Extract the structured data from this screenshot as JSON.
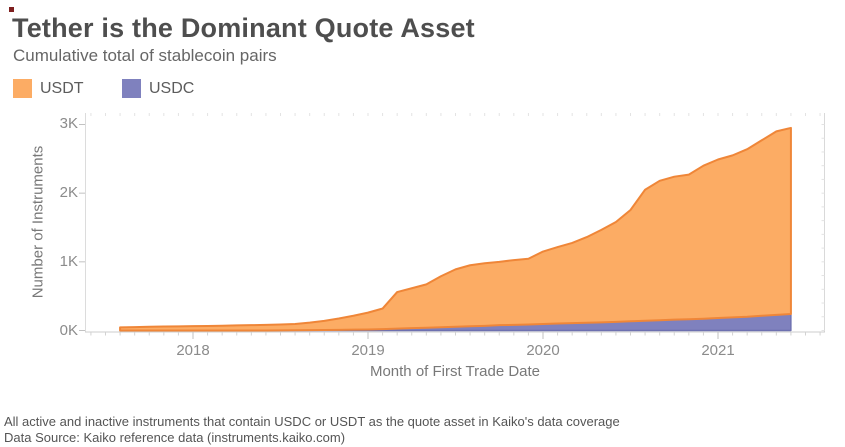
{
  "page": {
    "title": "Tether is the Dominant Quote Asset",
    "subtitle": "Cumulative total of stablecoin pairs"
  },
  "legend": {
    "items": [
      {
        "label": "USDT",
        "color": "#FCAC64"
      },
      {
        "label": "USDC",
        "color": "#7F81BE"
      }
    ]
  },
  "footer": {
    "line1": "All active and inactive instruments that contain USDC or USDT as the quote asset in Kaiko's data coverage",
    "line2": "Data Source: Kaiko reference data (instruments.kaiko.com)"
  },
  "chart_data": {
    "type": "area",
    "stacked": true,
    "title": "Tether is the Dominant Quote Asset",
    "subtitle": "Cumulative total of stablecoin pairs",
    "xlabel": "Month of First Trade Date",
    "ylabel": "Number of Instruments",
    "x_tick_labels": [
      "2018",
      "2019",
      "2020",
      "2021"
    ],
    "y_tick_labels": [
      "0K",
      "1K",
      "2K",
      "3K"
    ],
    "y_tick_values": [
      0,
      1000,
      2000,
      3000
    ],
    "ylim": [
      0,
      3150
    ],
    "legend_position": "top-left",
    "grid": false,
    "months": [
      "2017-08",
      "2017-09",
      "2017-10",
      "2017-11",
      "2017-12",
      "2018-01",
      "2018-02",
      "2018-03",
      "2018-04",
      "2018-05",
      "2018-06",
      "2018-07",
      "2018-08",
      "2018-09",
      "2018-10",
      "2018-11",
      "2018-12",
      "2019-01",
      "2019-02",
      "2019-03",
      "2019-04",
      "2019-05",
      "2019-06",
      "2019-07",
      "2019-08",
      "2019-09",
      "2019-10",
      "2019-11",
      "2019-12",
      "2020-01",
      "2020-02",
      "2020-03",
      "2020-04",
      "2020-05",
      "2020-06",
      "2020-07",
      "2020-08",
      "2020-09",
      "2020-10",
      "2020-11",
      "2020-12",
      "2021-01",
      "2021-02",
      "2021-03",
      "2021-04",
      "2021-05",
      "2021-06"
    ],
    "stack_order": [
      "USDC",
      "USDT"
    ],
    "series": [
      {
        "name": "USDC",
        "color": "#7F81BE",
        "stroke": "#6E71B0",
        "values": [
          0,
          0,
          0,
          0,
          0,
          0,
          0,
          0,
          0,
          0,
          0,
          2,
          3,
          5,
          8,
          10,
          12,
          15,
          20,
          28,
          35,
          40,
          48,
          55,
          62,
          68,
          78,
          82,
          88,
          95,
          102,
          108,
          112,
          118,
          126,
          134,
          142,
          150,
          158,
          164,
          172,
          182,
          192,
          200,
          215,
          228,
          240
        ]
      },
      {
        "name": "USDT",
        "color": "#FCAC64",
        "stroke": "#EF8638",
        "values": [
          45,
          50,
          55,
          58,
          60,
          63,
          66,
          70,
          74,
          78,
          82,
          86,
          92,
          110,
          132,
          165,
          203,
          245,
          300,
          532,
          580,
          632,
          742,
          835,
          888,
          912,
          922,
          943,
          957,
          1055,
          1113,
          1167,
          1248,
          1347,
          1454,
          1621,
          1908,
          2030,
          2082,
          2106,
          2228,
          2308,
          2358,
          2440,
          2555,
          2672,
          2710
        ]
      }
    ]
  }
}
